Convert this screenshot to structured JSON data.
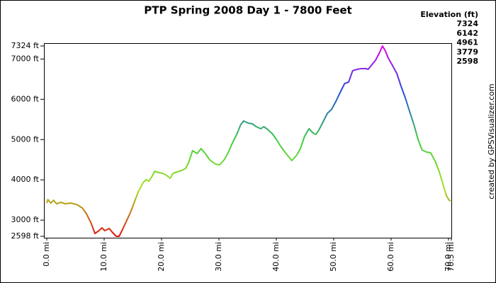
{
  "chart_data": {
    "type": "line",
    "title": "PTP Spring 2008 Day 1 - 7800 Feet",
    "legend_title": "Elevation (ft)",
    "color_scale": [
      {
        "value": 7324,
        "color": "#e600e6"
      },
      {
        "value": 6142,
        "color": "#1f4fe0"
      },
      {
        "value": 4961,
        "color": "#40d040"
      },
      {
        "value": 3779,
        "color": "#a8e01f"
      },
      {
        "value": 2598,
        "color": "#e01010"
      }
    ],
    "credit": "created by GPSVisualizer.com",
    "xlim": [
      0,
      70.5
    ],
    "ylim": [
      2598,
      7324
    ],
    "xticks": [
      {
        "value": 0,
        "label": "0.0 mi"
      },
      {
        "value": 10,
        "label": "10.0 mi"
      },
      {
        "value": 20,
        "label": "20.0 mi"
      },
      {
        "value": 30,
        "label": "30.0 mi"
      },
      {
        "value": 40,
        "label": "40.0 mi"
      },
      {
        "value": 50,
        "label": "50.0 mi"
      },
      {
        "value": 60,
        "label": "60.0 mi"
      },
      {
        "value": 70,
        "label": "70.0 mi"
      },
      {
        "value": 70.5,
        "label": "70.5 mi"
      }
    ],
    "yticks": [
      {
        "value": 2598,
        "label": "2598 ft"
      },
      {
        "value": 3000,
        "label": "3000 ft"
      },
      {
        "value": 4000,
        "label": "4000 ft"
      },
      {
        "value": 5000,
        "label": "5000 ft"
      },
      {
        "value": 6000,
        "label": "6000 ft"
      },
      {
        "value": 7000,
        "label": "7000 ft"
      },
      {
        "value": 7324,
        "label": "7324 ft"
      }
    ],
    "x": [
      0,
      0.2,
      0.7,
      1.2,
      1.7,
      2.5,
      3.2,
      4.2,
      5.2,
      6.2,
      6.9,
      7.7,
      8.4,
      9.1,
      9.6,
      10.1,
      10.9,
      11.4,
      12.1,
      12.6,
      13.1,
      13.8,
      14.6,
      15.3,
      16.0,
      16.8,
      17.3,
      17.8,
      18.3,
      18.8,
      19.5,
      20.2,
      20.9,
      21.5,
      22.0,
      22.7,
      23.5,
      24.2,
      24.7,
      25.4,
      26.2,
      26.9,
      27.7,
      28.4,
      29.4,
      30.1,
      30.9,
      31.6,
      32.3,
      33.1,
      33.8,
      34.3,
      35.1,
      35.8,
      36.5,
      37.3,
      37.8,
      38.5,
      39.3,
      40.0,
      40.7,
      41.5,
      42.2,
      42.7,
      43.5,
      44.2,
      44.9,
      45.7,
      46.4,
      46.9,
      47.4,
      48.1,
      48.9,
      49.6,
      50.4,
      51.1,
      51.9,
      52.6,
      53.3,
      54.1,
      54.8,
      55.6,
      56.0,
      56.5,
      57.3,
      58.0,
      58.5,
      59.0,
      59.5,
      60.2,
      61.0,
      61.7,
      62.5,
      63.2,
      64.0,
      64.7,
      65.4,
      66.2,
      66.9,
      67.7,
      68.4,
      69.1,
      69.6,
      70.1,
      70.4
    ],
    "values": [
      3424,
      3512,
      3424,
      3494,
      3406,
      3441,
      3406,
      3424,
      3388,
      3301,
      3160,
      2932,
      2668,
      2739,
      2809,
      2739,
      2791,
      2703,
      2598,
      2598,
      2739,
      2949,
      3195,
      3459,
      3722,
      3933,
      4004,
      3968,
      4074,
      4214,
      4179,
      4162,
      4109,
      4039,
      4162,
      4197,
      4232,
      4285,
      4425,
      4724,
      4654,
      4777,
      4636,
      4495,
      4390,
      4372,
      4495,
      4671,
      4900,
      5128,
      5374,
      5462,
      5409,
      5392,
      5321,
      5269,
      5321,
      5251,
      5146,
      5005,
      4847,
      4689,
      4566,
      4478,
      4601,
      4777,
      5075,
      5269,
      5163,
      5128,
      5234,
      5427,
      5655,
      5743,
      5954,
      6165,
      6393,
      6428,
      6710,
      6745,
      6762,
      6762,
      6745,
      6833,
      6973,
      7166,
      7324,
      7201,
      7026,
      6850,
      6639,
      6340,
      6024,
      5708,
      5357,
      5005,
      4742,
      4689,
      4671,
      4460,
      4197,
      3863,
      3617,
      3494,
      3476
    ]
  }
}
